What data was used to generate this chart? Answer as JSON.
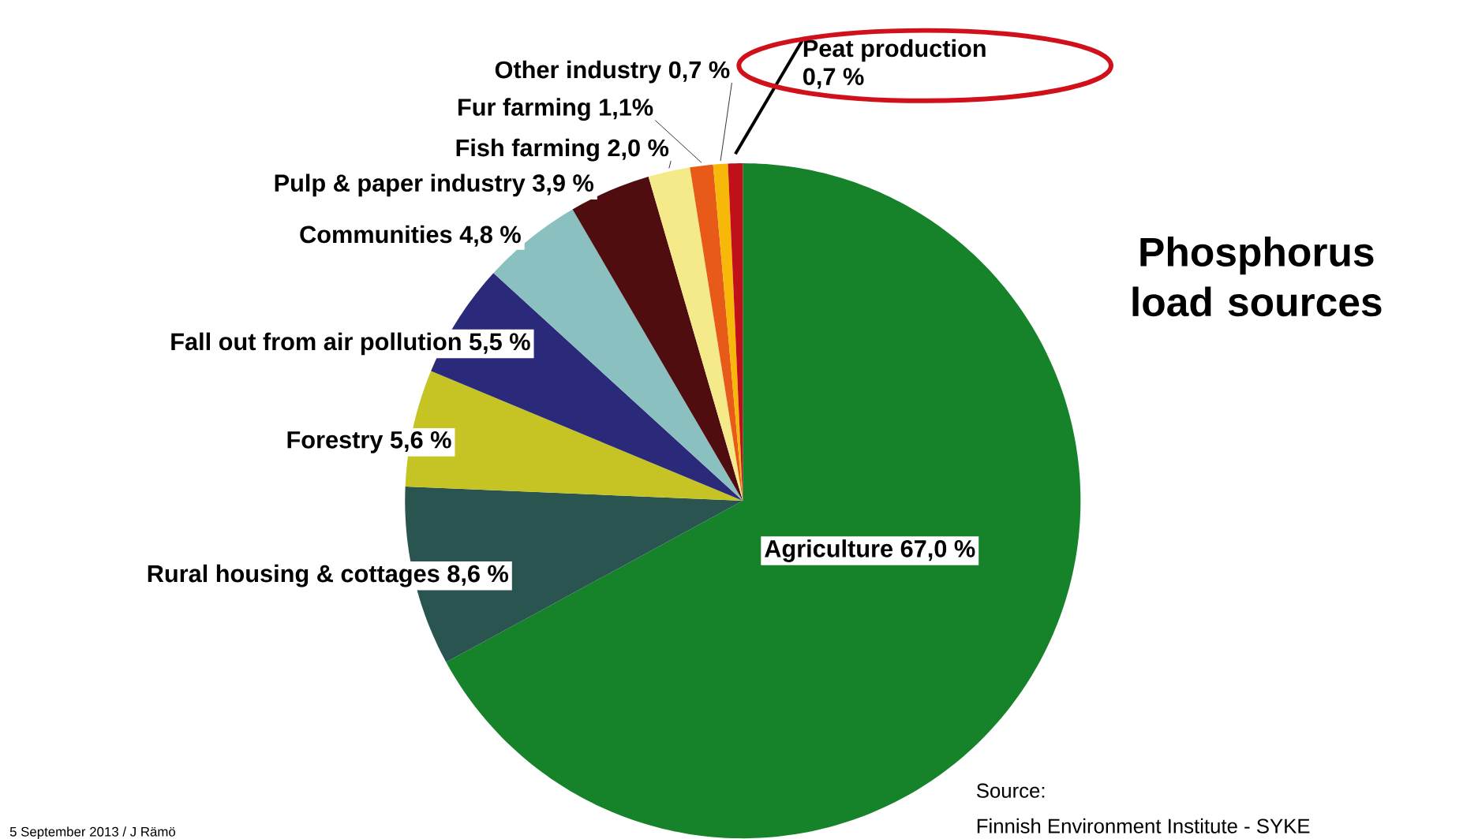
{
  "chart_data": {
    "type": "pie",
    "title": "Phosphorus load sources",
    "categories": [
      "Agriculture",
      "Rural housing & cottages",
      "Forestry",
      "Fall out from air pollution",
      "Communities",
      "Pulp & paper industry",
      "Fish farming",
      "Fur farming",
      "Other industry",
      "Peat production"
    ],
    "values": [
      67.0,
      8.6,
      5.6,
      5.5,
      4.8,
      3.9,
      2.0,
      1.1,
      0.7,
      0.7
    ],
    "value_labels": [
      "67,0 %",
      "8,6 %",
      "5,6 %",
      "5,5 %",
      "4,8 %",
      "3,9 %",
      "2,0 %",
      "1,1%",
      "0,7 %",
      "0,7 %"
    ],
    "colors": [
      "#16832a",
      "#2a5450",
      "#c5c424",
      "#2b2a7a",
      "#8bc0c0",
      "#4f0d10",
      "#f4ea8a",
      "#e85a18",
      "#f7b80a",
      "#c0101a"
    ],
    "annotations": [
      "Source:",
      "Finnish Environment Institute -  SYKE",
      "5 September 2013 / J Rämö"
    ]
  }
}
